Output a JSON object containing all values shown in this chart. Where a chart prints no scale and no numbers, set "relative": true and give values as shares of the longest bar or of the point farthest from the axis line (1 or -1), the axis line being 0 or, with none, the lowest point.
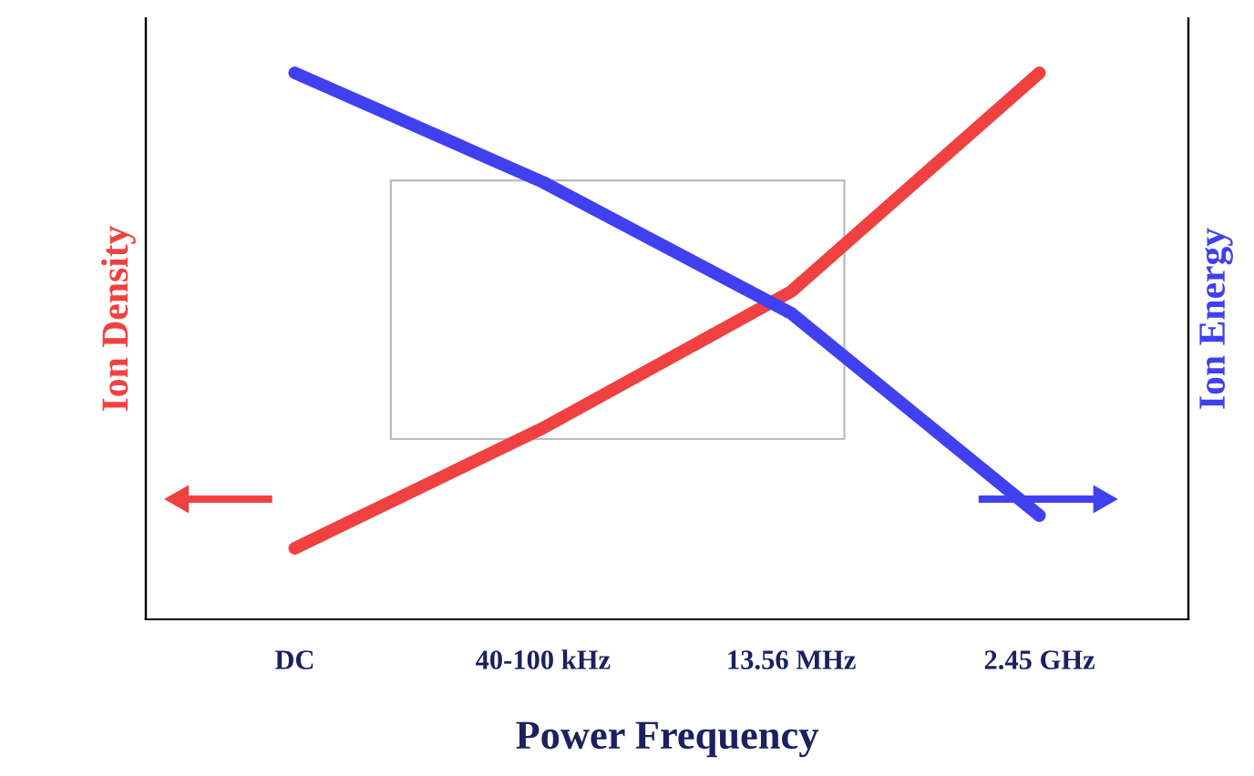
{
  "chart_data": {
    "type": "line",
    "xlabel": "Power Frequency",
    "ylabel": "Ion Density",
    "y2label": "Ion Energy",
    "relative": true,
    "tick_labels": "x",
    "grid": false,
    "marker": "none",
    "line_style": "solid",
    "categories": [
      "DC",
      "40-100 kHz",
      "13.56 MHz",
      "2.45 GHz"
    ],
    "series": [
      {
        "color": "#f04040",
        "values": [
          0.13,
          0.35,
          0.6,
          1
        ]
      },
      {
        "color": "#4040f0",
        "axis": "y2",
        "values": [
          1,
          0.8,
          0.56,
          0.19
        ]
      }
    ]
  }
}
